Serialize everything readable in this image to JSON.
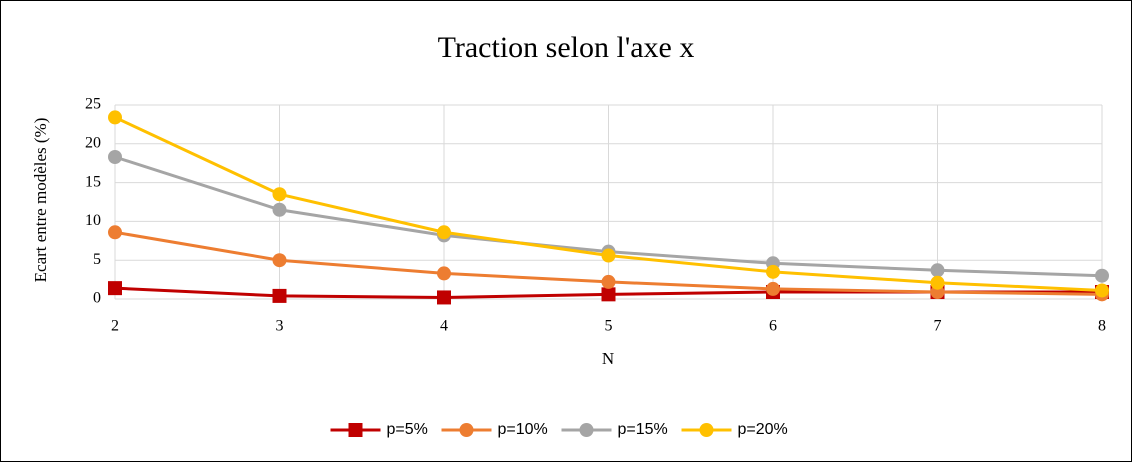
{
  "chart_data": {
    "type": "line",
    "title": "Traction selon l'axe x",
    "x_label": "N",
    "y_label": "Ecart entre modèles (%)",
    "x": [
      2,
      3,
      4,
      5,
      6,
      7,
      8
    ],
    "xlim": [
      2,
      8
    ],
    "xticks": [
      2,
      3,
      4,
      5,
      6,
      7,
      8
    ],
    "ylim": [
      0,
      25
    ],
    "yticks": [
      0,
      5,
      10,
      15,
      20,
      25
    ],
    "grid": true,
    "legend": "bottom",
    "series": [
      {
        "name": "p=5%",
        "color": "#c00000",
        "marker": "square",
        "values": [
          1.4,
          0.4,
          0.2,
          0.6,
          0.9,
          0.9,
          0.9
        ]
      },
      {
        "name": "p=10%",
        "color": "#ed7d31",
        "marker": "circle",
        "values": [
          8.6,
          5.0,
          3.3,
          2.2,
          1.3,
          0.9,
          0.6
        ]
      },
      {
        "name": "p=15%",
        "color": "#a5a5a5",
        "marker": "circle",
        "values": [
          18.3,
          11.5,
          8.2,
          6.1,
          4.6,
          3.7,
          3.0
        ]
      },
      {
        "name": "p=20%",
        "color": "#ffc000",
        "marker": "circle",
        "values": [
          23.4,
          13.5,
          8.6,
          5.6,
          3.5,
          2.1,
          1.1
        ]
      }
    ]
  }
}
